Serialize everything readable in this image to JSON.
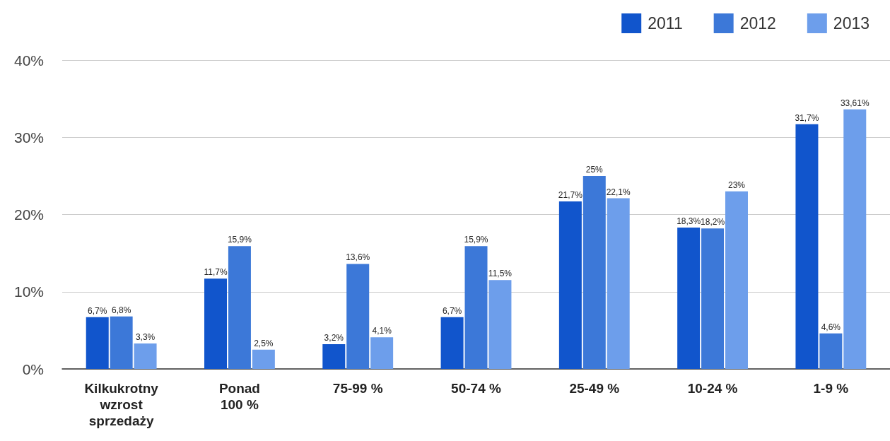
{
  "chart_data": {
    "type": "bar",
    "categories": [
      "Kilkukrotny wzrost sprzedaży",
      "Ponad 100 %",
      "75-99 %",
      "50-74 %",
      "25-49 %",
      "10-24 %",
      "1-9 %"
    ],
    "series": [
      {
        "name": "2011",
        "color": "#1155cc",
        "values": [
          6.7,
          11.7,
          3.2,
          6.7,
          21.7,
          18.3,
          31.7
        ],
        "value_labels": [
          "6,7%",
          "11,7%",
          "3,2%",
          "6,7%",
          "21,7%",
          "18,3%",
          "31,7%"
        ]
      },
      {
        "name": "2012",
        "color": "#3c78d8",
        "values": [
          6.8,
          15.9,
          13.6,
          15.9,
          25,
          18.2,
          4.6
        ],
        "value_labels": [
          "6,8%",
          "15,9%",
          "13,6%",
          "15,9%",
          "25%",
          "18,2%",
          "4,6%"
        ]
      },
      {
        "name": "2013",
        "color": "#6d9eeb",
        "values": [
          3.3,
          2.5,
          4.1,
          11.5,
          22.1,
          23,
          33.61
        ],
        "value_labels": [
          "3,3%",
          "2,5%",
          "4,1%",
          "11,5%",
          "22,1%",
          "23%",
          "33,61%"
        ]
      }
    ],
    "ylim": [
      0,
      40
    ],
    "yticks": [
      {
        "value": 0,
        "label": "0%"
      },
      {
        "value": 10,
        "label": "10%"
      },
      {
        "value": 20,
        "label": "20%"
      },
      {
        "value": 30,
        "label": "30%"
      },
      {
        "value": 40,
        "label": "40%"
      }
    ],
    "grid": "y",
    "legend": "top right"
  }
}
